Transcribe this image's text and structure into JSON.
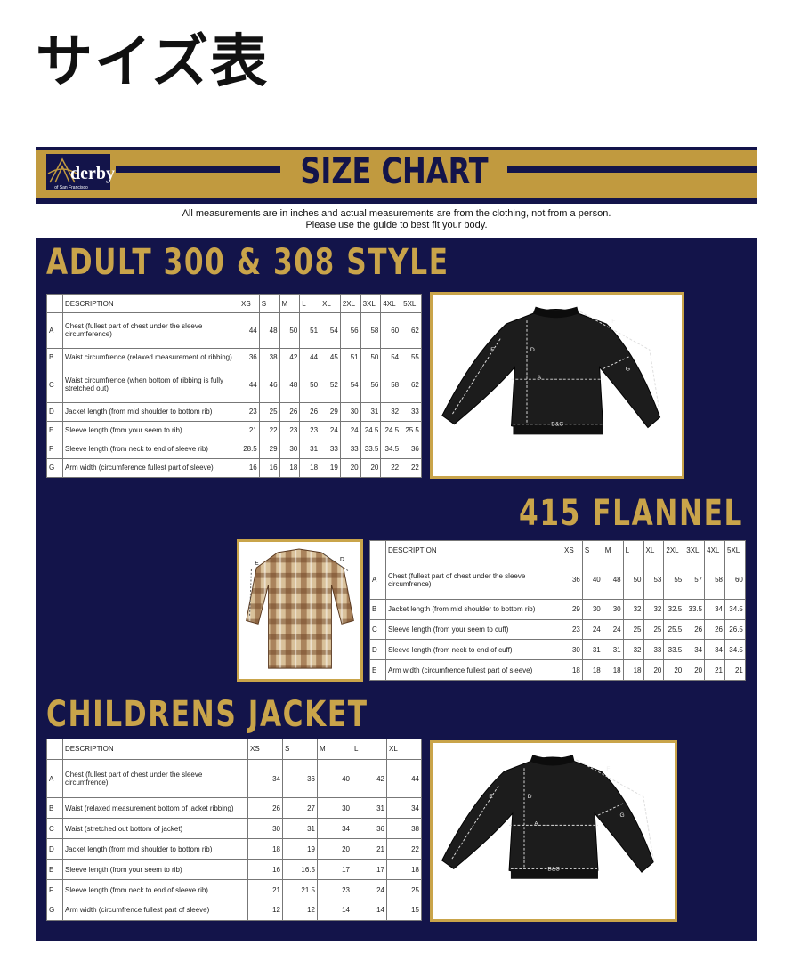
{
  "header": {
    "title": "サイズ表"
  },
  "banner": {
    "title": "SIZE CHART",
    "logo": "derby",
    "logo_sub": "of San Francisco"
  },
  "notes": [
    "All measurements are in inches and actual measurements are from the clothing, not from a person.",
    "Please use the guide to best fit your body."
  ],
  "sections": [
    {
      "title": "ADULT 300 & 308 STYLE",
      "table": {
        "header": [
          "DESCRIPTION",
          "XS",
          "S",
          "M",
          "L",
          "XL",
          "2XL",
          "3XL",
          "4XL",
          "5XL"
        ],
        "rows": [
          [
            "A",
            "Chest (fullest part of chest under the sleeve circumference)",
            44,
            48,
            50,
            51,
            54,
            56,
            58,
            60,
            62
          ],
          [
            "B",
            "Waist circumfrence (relaxed measurement of ribbing)",
            36,
            38,
            42,
            44,
            45,
            51,
            50,
            54,
            55
          ],
          [
            "C",
            "Waist circumfrence (when bottom of ribbing is fully stretched out)",
            44,
            46,
            48,
            50,
            52,
            54,
            56,
            58,
            62
          ],
          [
            "D",
            "Jacket length (from mid shoulder to bottom rib)",
            23,
            25,
            26,
            26,
            29,
            30,
            31,
            32,
            33
          ],
          [
            "E",
            "Sleeve length (from your seem to rib)",
            21,
            22,
            23,
            23,
            24,
            24,
            24.5,
            24.5,
            25.5
          ],
          [
            "F",
            "Sleeve length (from neck to end of sleeve rib)",
            28.5,
            29,
            30,
            31,
            33,
            33,
            33.5,
            34.5,
            36
          ],
          [
            "G",
            "Arm width (circumference fullest part of sleeve)",
            16,
            16,
            18,
            18,
            19,
            20,
            20,
            22,
            22
          ]
        ]
      },
      "diagram_labels": [
        "A",
        "B&C",
        "D",
        "E",
        "F",
        "G"
      ]
    },
    {
      "title": "415 FLANNEL",
      "table": {
        "header": [
          "DESCRIPTION",
          "XS",
          "S",
          "M",
          "L",
          "XL",
          "2XL",
          "3XL",
          "4XL",
          "5XL"
        ],
        "rows": [
          [
            "A",
            "Chest (fullest part of chest under the sleeve circumfrence)",
            36,
            40,
            48,
            50,
            53,
            55,
            57,
            58,
            60
          ],
          [
            "B",
            "Jacket length (from mid shoulder to bottom rib)",
            29,
            30,
            30,
            32,
            32,
            32.5,
            33.5,
            34,
            34.5
          ],
          [
            "C",
            "Sleeve length (from your seem to cuff)",
            23,
            24,
            24,
            25,
            25,
            25.5,
            26,
            26,
            26.5
          ],
          [
            "D",
            "Sleeve length (from neck to end of cuff)",
            30,
            31,
            31,
            32,
            33,
            33.5,
            34,
            34,
            34.5
          ],
          [
            "E",
            "Arm width (circumfrence fullest part of sleeve)",
            18,
            18,
            18,
            18,
            20,
            20,
            20,
            21,
            21
          ]
        ]
      },
      "diagram_labels": [
        "E",
        "D"
      ]
    },
    {
      "title": "CHILDRENS JACKET",
      "table": {
        "header": [
          "DESCRIPTION",
          "XS",
          "S",
          "M",
          "L",
          "XL"
        ],
        "rows": [
          [
            "A",
            "Chest (fullest part of chest under the sleeve circumfrence)",
            34,
            36,
            40,
            42,
            44
          ],
          [
            "B",
            "Waist (relaxed measurement bottom of jacket ribbing)",
            26,
            27,
            30,
            31,
            34
          ],
          [
            "C",
            "Waist (stretched out bottom of jacket)",
            30,
            31,
            34,
            36,
            38
          ],
          [
            "D",
            "Jacket length (from mid shoulder to bottom rib)",
            18,
            19,
            20,
            21,
            22
          ],
          [
            "E",
            "Sleeve length (from your seem to rib)",
            16,
            16.5,
            17,
            17,
            18
          ],
          [
            "F",
            "Sleeve length (from neck to end of sleeve rib)",
            21,
            21.5,
            23,
            24,
            25
          ],
          [
            "G",
            "Arm width (circumfrence fullest part of sleeve)",
            12,
            12,
            14,
            14,
            15
          ]
        ]
      },
      "diagram_labels": [
        "A",
        "B&C",
        "D",
        "E",
        "F",
        "G"
      ]
    }
  ]
}
